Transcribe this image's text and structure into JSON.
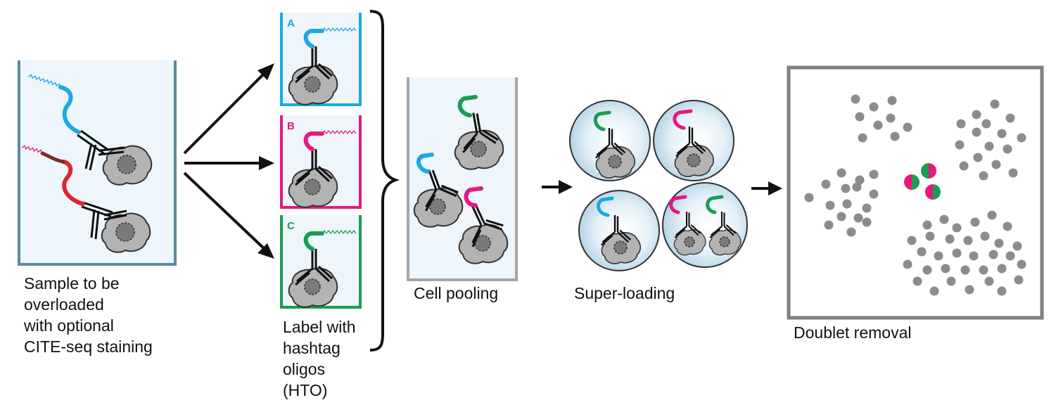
{
  "colors": {
    "hto_a": "#1ba9e1",
    "hto_b": "#e6187f",
    "hto_c": "#1a9c55",
    "sample_red": "#e0242c",
    "antibody": "#111111",
    "cell_fill": "#b3b3b3",
    "nucleus_fill": "#7a7a7a",
    "dot": "#8c8c8c",
    "tube_fill": "#eef5fb",
    "tube_sample_border": "#5b8aa0",
    "tube_pool_border": "#a6a6a6",
    "frame_border": "#7f7f7f"
  },
  "panels": {
    "sample": {
      "caption_lines": [
        "Sample to be",
        "overloaded",
        "with optional",
        "CITE-seq staining"
      ]
    },
    "label": {
      "caption_lines": [
        "Label with",
        "hashtag",
        "oligos",
        "(HTO)"
      ],
      "wells": [
        {
          "letter": "A",
          "color_key": "hto_a"
        },
        {
          "letter": "B",
          "color_key": "hto_b"
        },
        {
          "letter": "C",
          "color_key": "hto_c"
        }
      ]
    },
    "pooling": {
      "caption": "Cell pooling"
    },
    "superloading": {
      "caption": "Super-loading"
    },
    "doublet": {
      "caption": "Doublet removal"
    }
  },
  "icons": [
    "arrow-icon",
    "brace-icon",
    "cell-icon",
    "antibody-icon",
    "oligo-tail-icon",
    "droplet-icon",
    "scatter-dot-icon",
    "doublet-icon"
  ]
}
